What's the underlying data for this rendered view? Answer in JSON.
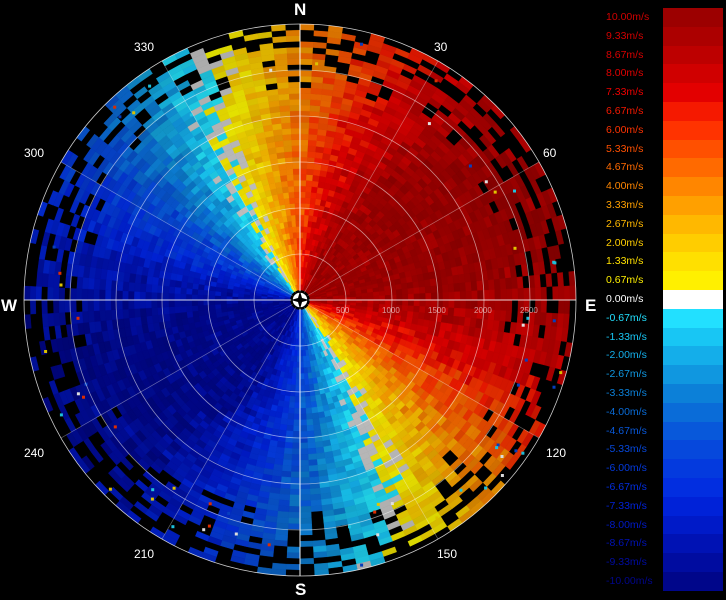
{
  "compass": {
    "north": "N",
    "south": "S",
    "east": "E",
    "west": "W"
  },
  "bearings": {
    "b30": "30",
    "b60": "60",
    "b120": "120",
    "b150": "150",
    "b210": "210",
    "b240": "240",
    "b300": "300",
    "b330": "330"
  },
  "range_labels": [
    "500",
    "1000",
    "1500",
    "2000",
    "2500"
  ],
  "legend": [
    {
      "label": "10.00m/s",
      "color": "#9c0000",
      "text_color": "#d10000"
    },
    {
      "label": "9.33m/s",
      "color": "#ac0000",
      "text_color": "#d10000"
    },
    {
      "label": "8.67m/s",
      "color": "#bd0000",
      "text_color": "#d80000"
    },
    {
      "label": "8.00m/s",
      "color": "#d00000",
      "text_color": "#e00000"
    },
    {
      "label": "7.33m/s",
      "color": "#e30000",
      "text_color": "#ee0000"
    },
    {
      "label": "6.67m/s",
      "color": "#f51900",
      "text_color": "#f51900"
    },
    {
      "label": "6.00m/s",
      "color": "#ff3300",
      "text_color": "#ff3300"
    },
    {
      "label": "5.33m/s",
      "color": "#ff5000",
      "text_color": "#ff5000"
    },
    {
      "label": "4.67m/s",
      "color": "#ff6a00",
      "text_color": "#ff6a00"
    },
    {
      "label": "4.00m/s",
      "color": "#ff8600",
      "text_color": "#ff8600"
    },
    {
      "label": "3.33m/s",
      "color": "#ffa000",
      "text_color": "#ffa000"
    },
    {
      "label": "2.67m/s",
      "color": "#ffb800",
      "text_color": "#ffb800"
    },
    {
      "label": "2.00m/s",
      "color": "#ffcd00",
      "text_color": "#ffcd00"
    },
    {
      "label": "1.33m/s",
      "color": "#ffe000",
      "text_color": "#ffe000"
    },
    {
      "label": "0.67m/s",
      "color": "#fff000",
      "text_color": "#fff000"
    },
    {
      "label": "0.00m/s",
      "color": "#ffffff",
      "text_color": "#ffffff"
    },
    {
      "label": "-0.67m/s",
      "color": "#22e0ff",
      "text_color": "#22e0ff"
    },
    {
      "label": "-1.33m/s",
      "color": "#18c6f4",
      "text_color": "#18c6f4"
    },
    {
      "label": "-2.00m/s",
      "color": "#14aeea",
      "text_color": "#14aeea"
    },
    {
      "label": "-2.67m/s",
      "color": "#1097e0",
      "text_color": "#1097e0"
    },
    {
      "label": "-3.33m/s",
      "color": "#0c80d8",
      "text_color": "#0c80d8"
    },
    {
      "label": "-4.00m/s",
      "color": "#0a6cd8",
      "text_color": "#0a6cd8"
    },
    {
      "label": "-4.67m/s",
      "color": "#0858da",
      "text_color": "#0858da"
    },
    {
      "label": "-5.33m/s",
      "color": "#0648dc",
      "text_color": "#0648dc"
    },
    {
      "label": "-6.00m/s",
      "color": "#043ade",
      "text_color": "#043ade"
    },
    {
      "label": "-6.67m/s",
      "color": "#022ee0",
      "text_color": "#022ee0"
    },
    {
      "label": "-7.33m/s",
      "color": "#0022d8",
      "text_color": "#0022d8"
    },
    {
      "label": "-8.00m/s",
      "color": "#001ac8",
      "text_color": "#001ac8"
    },
    {
      "label": "-8.67m/s",
      "color": "#0012b4",
      "text_color": "#0012b4"
    },
    {
      "label": "-9.33m/s",
      "color": "#000ca0",
      "text_color": "#000ca0"
    },
    {
      "label": "-10.00m/s",
      "color": "#00068a",
      "text_color": "#00068a"
    }
  ]
}
